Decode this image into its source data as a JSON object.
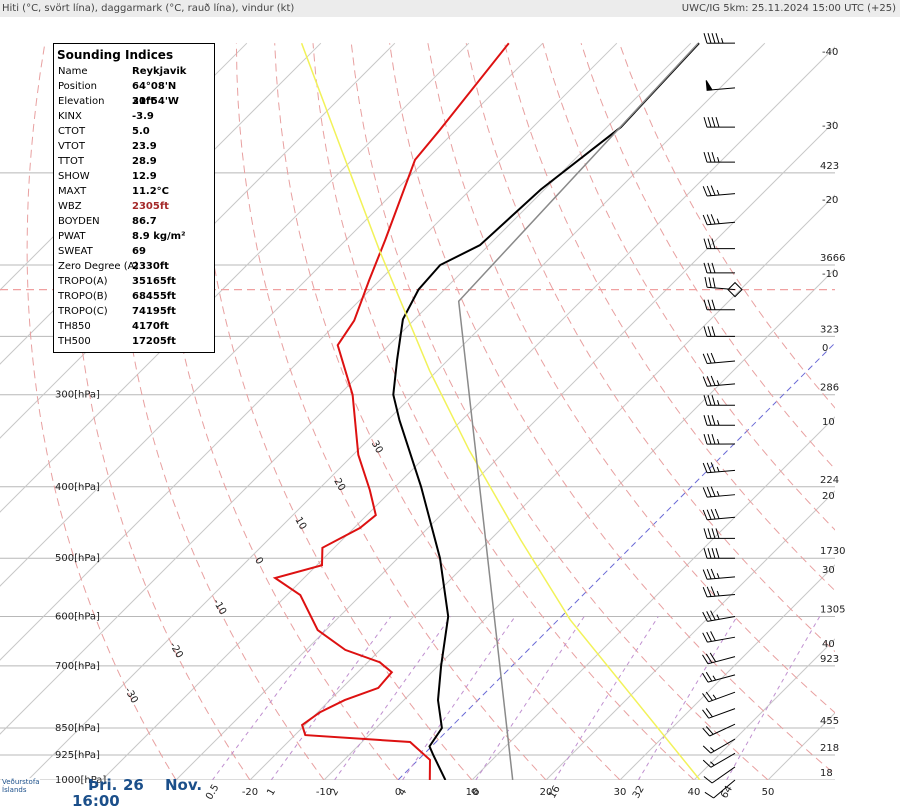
{
  "header": {
    "left": "Hiti (°C, svört lína), daggarmark (°C, rauð lína), vindur (kt)",
    "right": "UWC/IG 5km: 25.11.2024 15:00 UTC (+25)"
  },
  "indices": {
    "title": "Sounding Indices",
    "rows": [
      [
        "Name",
        "Reykjavik"
      ],
      [
        "Position",
        "64°08'N 21°54'W"
      ],
      [
        "Elevation",
        "30ft"
      ],
      [
        "KINX",
        "-3.9"
      ],
      [
        "CTOT",
        "5.0"
      ],
      [
        "VTOT",
        "23.9"
      ],
      [
        "TTOT",
        "28.9"
      ],
      [
        "SHOW",
        "12.9"
      ],
      [
        "MAXT",
        "11.2°C"
      ],
      [
        "WBZ",
        "2305ft"
      ],
      [
        "BOYDEN",
        "86.7"
      ],
      [
        "PWAT",
        "8.9 kg/m²"
      ],
      [
        "SWEAT",
        "69"
      ],
      [
        "Zero Degree (A)",
        "2330ft"
      ],
      [
        "TROPO(A)",
        "35165ft"
      ],
      [
        "TROPO(B)",
        "68455ft"
      ],
      [
        "TROPO(C)",
        "74195ft"
      ],
      [
        "TH850",
        "4170ft"
      ],
      [
        "TH500",
        "17205ft"
      ]
    ]
  },
  "footer": {
    "logo": [
      "Veðurstofa",
      "Íslands"
    ],
    "day": "Þri.",
    "date": "26",
    "month": "Nov.",
    "time": "16:00"
  },
  "chart_data": {
    "type": "skewt",
    "ylim": [
      1000,
      100
    ],
    "yticks": [
      {
        "value": 300,
        "label": "300[hPa]"
      },
      {
        "value": 400,
        "label": "400[hPa]"
      },
      {
        "value": 500,
        "label": "500[hPa]"
      },
      {
        "value": 600,
        "label": "600[hPa]"
      },
      {
        "value": 700,
        "label": "700[hPa]"
      },
      {
        "value": 850,
        "label": "850[hPa]"
      },
      {
        "value": 925,
        "label": "925[hPa]"
      },
      {
        "value": 1000,
        "label": "1000[hPa]"
      }
    ],
    "height_labels": [
      {
        "value": 150,
        "label": "423"
      },
      {
        "value": 200,
        "label": "3666"
      },
      {
        "value": 250,
        "label": "323"
      },
      {
        "value": 300,
        "label": "286"
      },
      {
        "value": 400,
        "label": "224"
      },
      {
        "value": 500,
        "label": "1730"
      },
      {
        "value": 600,
        "label": "1305"
      },
      {
        "value": 700,
        "label": "923"
      },
      {
        "value": 850,
        "label": "455"
      },
      {
        "value": 925,
        "label": "218"
      },
      {
        "value": 1000,
        "label": "18"
      }
    ],
    "xticks": [
      -20,
      -10,
      0,
      10,
      20,
      30,
      40,
      50
    ],
    "isotherms": [
      -120,
      -110,
      -100,
      -90,
      -80,
      -70,
      -60,
      -50,
      -40,
      -30,
      -20,
      -10,
      0,
      10,
      20,
      30,
      40,
      50
    ],
    "isotherm_labels": [
      -40,
      -30,
      -20,
      -10,
      0,
      10,
      20,
      30,
      40
    ],
    "freezing_isotherm": 0,
    "freezing_color": "#6b6bd6",
    "dry_adiabats": [
      -30,
      -20,
      -10,
      0,
      10,
      20,
      30,
      40,
      50,
      60,
      70,
      80,
      90,
      100,
      110,
      120
    ],
    "adiabat_labels": [
      -30,
      -20,
      -10,
      0,
      10,
      20,
      30
    ],
    "mixing_ratios": [
      0.5,
      1,
      2,
      4,
      8,
      16,
      32,
      64
    ],
    "tropopause_p": 216,
    "series": [
      {
        "color": "#000000",
        "pressure": [
          1000,
          925,
          900,
          850,
          779,
          700,
          600,
          500,
          400,
          325,
          300,
          269,
          237,
          216,
          200,
          188,
          158,
          130,
          100
        ],
        "values": [
          6.4,
          1.4,
          -0.3,
          -1.1,
          -5.4,
          -9.6,
          -15.3,
          -24.3,
          -36.5,
          -48.4,
          -52.7,
          -56.9,
          -61.6,
          -63.5,
          -63.9,
          -61.2,
          -60.5,
          -58.1,
          -58.9
        ]
      },
      {
        "color": "#dd1111",
        "pressure": [
          1000,
          939,
          888,
          869,
          842,
          809,
          779,
          750,
          714,
          692,
          666,
          626,
          561,
          532,
          511,
          484,
          455,
          437,
          404,
          362,
          300,
          257,
          238,
          210,
          185,
          144,
          131,
          100
        ],
        "values": [
          4.3,
          1.6,
          -3.5,
          -18.6,
          -20.4,
          -19.7,
          -18.0,
          -15.1,
          -15.4,
          -18.4,
          -24.7,
          -31.1,
          -38.2,
          -43.9,
          -39.3,
          -41.6,
          -39.2,
          -38.8,
          -43.0,
          -49.3,
          -58.2,
          -66.9,
          -68.0,
          -71.4,
          -74.7,
          -81.5,
          -82.2,
          -84.6
        ]
      },
      {
        "color": "#f2f25a",
        "pressure": [
          1000,
          606,
          472,
          357,
          278,
          191,
          149,
          100
        ],
        "values": [
          40.8,
          1.6,
          -15.9,
          -34.9,
          -51.1,
          -74.1,
          -88.9,
          -112.6
        ]
      },
      {
        "color": "#8a8a8a",
        "pressure": [
          1000,
          224,
          100
        ],
        "values": [
          15.5,
          -56.5,
          -59
        ]
      }
    ],
    "wind": {
      "pressure": [
        100,
        115,
        130,
        145,
        160,
        175,
        190,
        205,
        216,
        230,
        250,
        270,
        290,
        310,
        330,
        350,
        380,
        410,
        440,
        470,
        500,
        530,
        560,
        600,
        640,
        680,
        720,
        760,
        800,
        840,
        880,
        920,
        960,
        1000
      ],
      "speeds": [
        45,
        50,
        40,
        35,
        35,
        35,
        30,
        30,
        30,
        30,
        30,
        30,
        35,
        35,
        35,
        35,
        35,
        35,
        40,
        40,
        40,
        35,
        35,
        35,
        30,
        30,
        25,
        25,
        20,
        20,
        15,
        15,
        10,
        10
      ],
      "dirs": [
        270,
        265,
        270,
        270,
        265,
        265,
        270,
        270,
        275,
        270,
        270,
        265,
        265,
        270,
        270,
        270,
        265,
        265,
        265,
        270,
        270,
        265,
        265,
        260,
        260,
        255,
        255,
        250,
        250,
        245,
        240,
        240,
        235,
        230
      ]
    }
  }
}
